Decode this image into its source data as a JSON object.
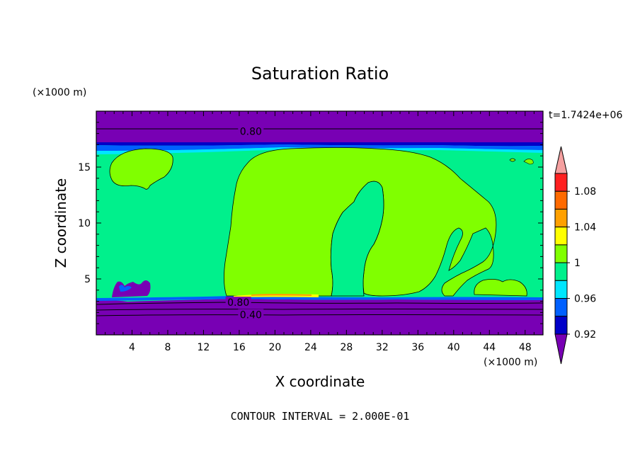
{
  "chart_data": {
    "type": "contour",
    "title": "Saturation Ratio",
    "xlabel": "X coordinate",
    "ylabel": "Z coordinate",
    "x_unit": "(×1000 m)",
    "y_unit": "(×1000 m)",
    "time_label": "t=1.7424e+06",
    "footer": "CONTOUR INTERVAL = 2.000E-01",
    "xlim": [
      0,
      50
    ],
    "ylim": [
      0,
      20
    ],
    "x_ticks": [
      "4",
      "8",
      "12",
      "16",
      "20",
      "24",
      "28",
      "32",
      "36",
      "40",
      "44",
      "48"
    ],
    "y_ticks": [
      "5",
      "10",
      "15"
    ],
    "contour_labels": [
      {
        "text": "0.80",
        "x": 17.3,
        "z": 18.2
      },
      {
        "text": "0.80",
        "x": 15.9,
        "z": 2.9
      },
      {
        "text": "0.40",
        "x": 17.3,
        "z": 1.8
      }
    ],
    "levels": [
      0.92,
      0.94,
      0.96,
      0.98,
      1.0,
      1.02,
      1.04,
      1.06,
      1.08,
      1.1
    ],
    "colorbar": {
      "labels": [
        "1.08",
        "1.04",
        "1",
        "0.96",
        "0.92"
      ],
      "colors": [
        "#f5a0a0",
        "#ff2020",
        "#ff6a00",
        "#ffa000",
        "#ffff00",
        "#80ff00",
        "#00f08c",
        "#00e6ff",
        "#0060ff",
        "#0000c8",
        "#7800b4"
      ]
    },
    "regions": {
      "below_0_92": "#7800b4",
      "range_0_98_1_00": "#00f08c",
      "range_1_00_1_02": "#80ff00"
    }
  }
}
